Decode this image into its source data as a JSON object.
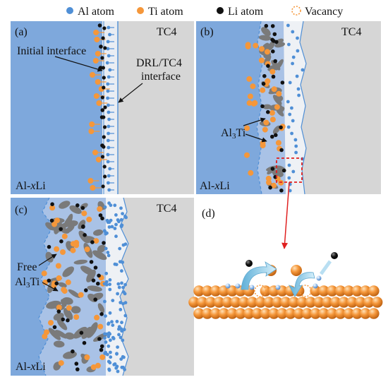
{
  "legend": {
    "al": "Al atom",
    "ti": "Ti atom",
    "li": "Li atom",
    "vacancy": "Vacancy"
  },
  "panels": {
    "a": {
      "tag": "(a)",
      "right": "TC4",
      "left": "Al-xLi",
      "initial_interface": "Initial interface",
      "drl1": "DRL/TC4",
      "drl2": "interface"
    },
    "b": {
      "tag": "(b)",
      "right": "TC4",
      "left": "Al-xLi",
      "phase": "Al3Ti"
    },
    "c": {
      "tag": "(c)",
      "right": "TC4",
      "left": "Al-xLi",
      "free": "Free",
      "phase": "Al3Ti"
    },
    "d": {
      "tag": "(d)"
    }
  },
  "colors": {
    "al_blue": "#4f8fd6",
    "alloy_blue": "#7ea8dc",
    "tc4_gray": "#d6d6d6",
    "ti_orange": "#f5973a",
    "li_black": "#111111",
    "al3ti_gray": "#7a7a7a",
    "highlight_red": "#e02020"
  }
}
